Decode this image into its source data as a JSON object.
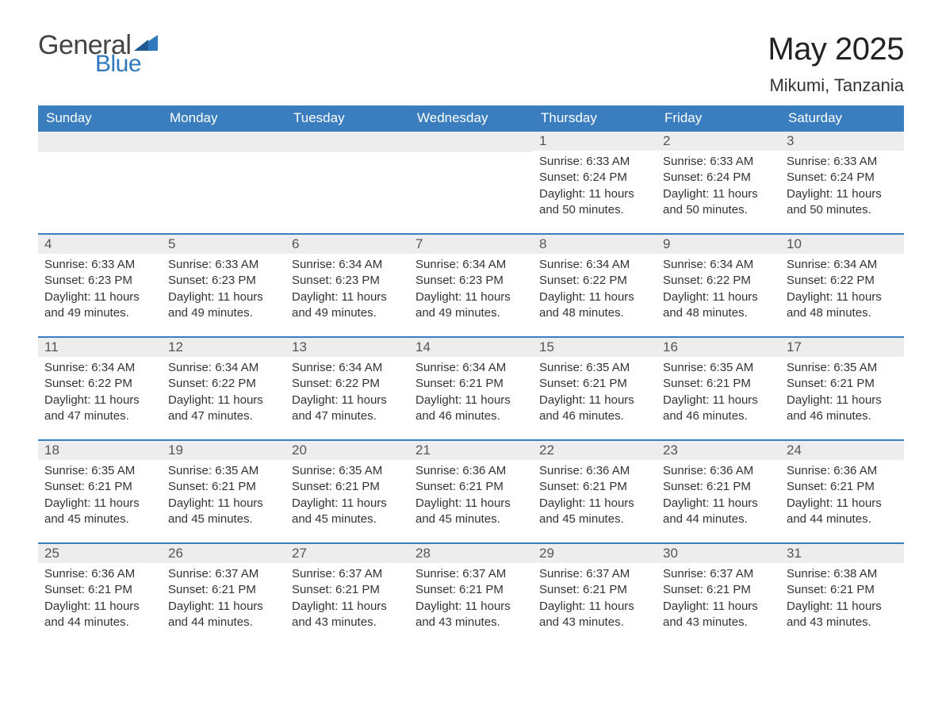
{
  "logo": {
    "text_general": "General",
    "text_blue": "Blue",
    "flag_color": "#2f78bd"
  },
  "title": "May 2025",
  "location": "Mikumi, Tanzania",
  "colors": {
    "header_bg": "#3a7ebf",
    "header_text": "#ffffff",
    "daynum_bg": "#ededed",
    "daynum_text": "#555555",
    "body_text": "#333333",
    "row_border": "#3a7ebf"
  },
  "weekdays": [
    "Sunday",
    "Monday",
    "Tuesday",
    "Wednesday",
    "Thursday",
    "Friday",
    "Saturday"
  ],
  "weeks": [
    [
      null,
      null,
      null,
      null,
      {
        "day": "1",
        "sunrise": "Sunrise: 6:33 AM",
        "sunset": "Sunset: 6:24 PM",
        "daylight": "Daylight: 11 hours and 50 minutes."
      },
      {
        "day": "2",
        "sunrise": "Sunrise: 6:33 AM",
        "sunset": "Sunset: 6:24 PM",
        "daylight": "Daylight: 11 hours and 50 minutes."
      },
      {
        "day": "3",
        "sunrise": "Sunrise: 6:33 AM",
        "sunset": "Sunset: 6:24 PM",
        "daylight": "Daylight: 11 hours and 50 minutes."
      }
    ],
    [
      {
        "day": "4",
        "sunrise": "Sunrise: 6:33 AM",
        "sunset": "Sunset: 6:23 PM",
        "daylight": "Daylight: 11 hours and 49 minutes."
      },
      {
        "day": "5",
        "sunrise": "Sunrise: 6:33 AM",
        "sunset": "Sunset: 6:23 PM",
        "daylight": "Daylight: 11 hours and 49 minutes."
      },
      {
        "day": "6",
        "sunrise": "Sunrise: 6:34 AM",
        "sunset": "Sunset: 6:23 PM",
        "daylight": "Daylight: 11 hours and 49 minutes."
      },
      {
        "day": "7",
        "sunrise": "Sunrise: 6:34 AM",
        "sunset": "Sunset: 6:23 PM",
        "daylight": "Daylight: 11 hours and 49 minutes."
      },
      {
        "day": "8",
        "sunrise": "Sunrise: 6:34 AM",
        "sunset": "Sunset: 6:22 PM",
        "daylight": "Daylight: 11 hours and 48 minutes."
      },
      {
        "day": "9",
        "sunrise": "Sunrise: 6:34 AM",
        "sunset": "Sunset: 6:22 PM",
        "daylight": "Daylight: 11 hours and 48 minutes."
      },
      {
        "day": "10",
        "sunrise": "Sunrise: 6:34 AM",
        "sunset": "Sunset: 6:22 PM",
        "daylight": "Daylight: 11 hours and 48 minutes."
      }
    ],
    [
      {
        "day": "11",
        "sunrise": "Sunrise: 6:34 AM",
        "sunset": "Sunset: 6:22 PM",
        "daylight": "Daylight: 11 hours and 47 minutes."
      },
      {
        "day": "12",
        "sunrise": "Sunrise: 6:34 AM",
        "sunset": "Sunset: 6:22 PM",
        "daylight": "Daylight: 11 hours and 47 minutes."
      },
      {
        "day": "13",
        "sunrise": "Sunrise: 6:34 AM",
        "sunset": "Sunset: 6:22 PM",
        "daylight": "Daylight: 11 hours and 47 minutes."
      },
      {
        "day": "14",
        "sunrise": "Sunrise: 6:34 AM",
        "sunset": "Sunset: 6:21 PM",
        "daylight": "Daylight: 11 hours and 46 minutes."
      },
      {
        "day": "15",
        "sunrise": "Sunrise: 6:35 AM",
        "sunset": "Sunset: 6:21 PM",
        "daylight": "Daylight: 11 hours and 46 minutes."
      },
      {
        "day": "16",
        "sunrise": "Sunrise: 6:35 AM",
        "sunset": "Sunset: 6:21 PM",
        "daylight": "Daylight: 11 hours and 46 minutes."
      },
      {
        "day": "17",
        "sunrise": "Sunrise: 6:35 AM",
        "sunset": "Sunset: 6:21 PM",
        "daylight": "Daylight: 11 hours and 46 minutes."
      }
    ],
    [
      {
        "day": "18",
        "sunrise": "Sunrise: 6:35 AM",
        "sunset": "Sunset: 6:21 PM",
        "daylight": "Daylight: 11 hours and 45 minutes."
      },
      {
        "day": "19",
        "sunrise": "Sunrise: 6:35 AM",
        "sunset": "Sunset: 6:21 PM",
        "daylight": "Daylight: 11 hours and 45 minutes."
      },
      {
        "day": "20",
        "sunrise": "Sunrise: 6:35 AM",
        "sunset": "Sunset: 6:21 PM",
        "daylight": "Daylight: 11 hours and 45 minutes."
      },
      {
        "day": "21",
        "sunrise": "Sunrise: 6:36 AM",
        "sunset": "Sunset: 6:21 PM",
        "daylight": "Daylight: 11 hours and 45 minutes."
      },
      {
        "day": "22",
        "sunrise": "Sunrise: 6:36 AM",
        "sunset": "Sunset: 6:21 PM",
        "daylight": "Daylight: 11 hours and 45 minutes."
      },
      {
        "day": "23",
        "sunrise": "Sunrise: 6:36 AM",
        "sunset": "Sunset: 6:21 PM",
        "daylight": "Daylight: 11 hours and 44 minutes."
      },
      {
        "day": "24",
        "sunrise": "Sunrise: 6:36 AM",
        "sunset": "Sunset: 6:21 PM",
        "daylight": "Daylight: 11 hours and 44 minutes."
      }
    ],
    [
      {
        "day": "25",
        "sunrise": "Sunrise: 6:36 AM",
        "sunset": "Sunset: 6:21 PM",
        "daylight": "Daylight: 11 hours and 44 minutes."
      },
      {
        "day": "26",
        "sunrise": "Sunrise: 6:37 AM",
        "sunset": "Sunset: 6:21 PM",
        "daylight": "Daylight: 11 hours and 44 minutes."
      },
      {
        "day": "27",
        "sunrise": "Sunrise: 6:37 AM",
        "sunset": "Sunset: 6:21 PM",
        "daylight": "Daylight: 11 hours and 43 minutes."
      },
      {
        "day": "28",
        "sunrise": "Sunrise: 6:37 AM",
        "sunset": "Sunset: 6:21 PM",
        "daylight": "Daylight: 11 hours and 43 minutes."
      },
      {
        "day": "29",
        "sunrise": "Sunrise: 6:37 AM",
        "sunset": "Sunset: 6:21 PM",
        "daylight": "Daylight: 11 hours and 43 minutes."
      },
      {
        "day": "30",
        "sunrise": "Sunrise: 6:37 AM",
        "sunset": "Sunset: 6:21 PM",
        "daylight": "Daylight: 11 hours and 43 minutes."
      },
      {
        "day": "31",
        "sunrise": "Sunrise: 6:38 AM",
        "sunset": "Sunset: 6:21 PM",
        "daylight": "Daylight: 11 hours and 43 minutes."
      }
    ]
  ]
}
